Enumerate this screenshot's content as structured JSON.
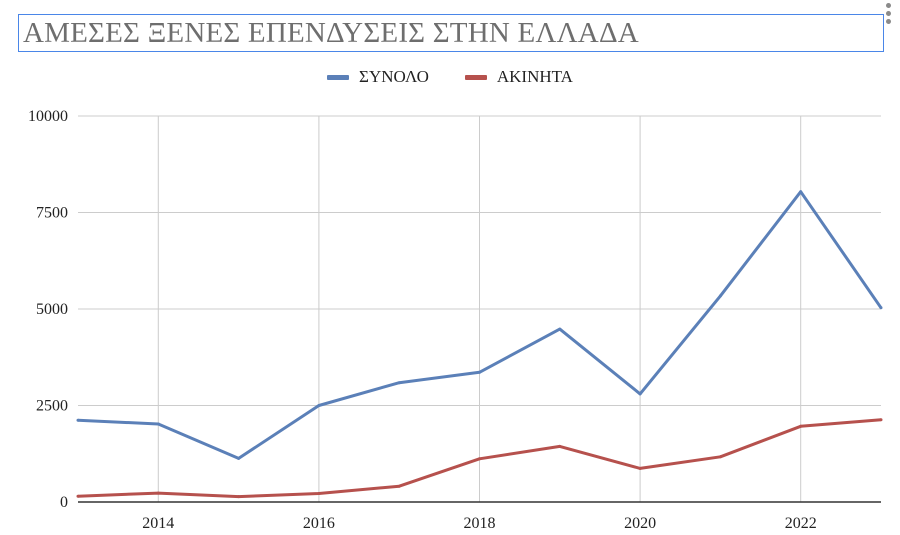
{
  "title": "ΑΜΕΣΕΣ ΞΕΝΕΣ ΕΠΕΝΔΥΣΕΙΣ ΣΤΗΝ ΕΛΛΑΔΑ",
  "menu_icon": "more-vert-icon",
  "legend": [
    {
      "label": "ΣΥΝΟΛΟ",
      "color": "#5b80b8"
    },
    {
      "label": "ΑΚΙΝΗΤΑ",
      "color": "#b6514d"
    }
  ],
  "chart_data": {
    "type": "line",
    "title": "ΑΜΕΣΕΣ ΞΕΝΕΣ ΕΠΕΝΔΥΣΕΙΣ ΣΤΗΝ ΕΛΛΑΔΑ",
    "xlabel": "",
    "ylabel": "",
    "x": [
      2013,
      2014,
      2015,
      2016,
      2017,
      2018,
      2019,
      2020,
      2021,
      2022,
      2023
    ],
    "xticks": [
      2014,
      2016,
      2018,
      2020,
      2022
    ],
    "xlim": [
      2013,
      2023
    ],
    "yticks": [
      0,
      2500,
      5000,
      7500,
      10000
    ],
    "ylim": [
      0,
      10000
    ],
    "grid": true,
    "legend_position": "top-center",
    "series": [
      {
        "name": "ΣΥΝΟΛΟ",
        "color": "#5b80b8",
        "values": [
          2120,
          2020,
          1130,
          2500,
          3090,
          3360,
          4480,
          2800,
          5340,
          8040,
          5030
        ]
      },
      {
        "name": "ΑΚΙΝΗΤΑ",
        "color": "#b6514d",
        "values": [
          150,
          230,
          140,
          220,
          410,
          1120,
          1440,
          870,
          1170,
          1960,
          2130
        ]
      }
    ]
  }
}
